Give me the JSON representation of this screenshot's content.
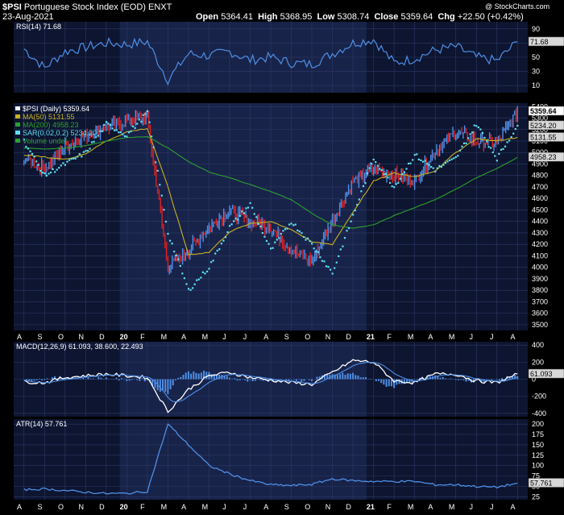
{
  "header": {
    "symbol": "$PSI",
    "name": "Portuguese Stock Index (EOD)",
    "exchange": "ENXT",
    "date": "23-Aug-2021",
    "open_label": "Open",
    "open": "5364.41",
    "high_label": "High",
    "high": "5368.95",
    "low_label": "Low",
    "low": "5308.74",
    "close_label": "Close",
    "close": "5359.64",
    "chg_label": "Chg",
    "chg": "+22.50 (+0.42%)",
    "watermark": "@ StockCharts.com"
  },
  "colors": {
    "panel_bg": "#0d1530",
    "shade_bg": "#18234a",
    "grid": "#2f3a66",
    "line_blue": "#4f8fe6",
    "sar": "#5fe0f0",
    "ma50": "#c9b020",
    "ma200": "#2ea02e",
    "up": "#4f8fe6",
    "down": "#e02020",
    "text": "#ffffff",
    "label_bg": "#d8d8d8"
  },
  "x_axis": {
    "labels": [
      "A",
      "S",
      "O",
      "N",
      "D",
      "20",
      "F",
      "M",
      "A",
      "M",
      "J",
      "J",
      "A",
      "S",
      "O",
      "N",
      "D",
      "21",
      "F",
      "M",
      "A",
      "M",
      "J",
      "J",
      "A"
    ],
    "year_labels": [
      "20",
      "21"
    ]
  },
  "rsi_panel": {
    "legend": "RSI(14) 71.68",
    "last_label": "71.68",
    "last": 71.68,
    "ticks": [
      90,
      70,
      50,
      30,
      10
    ],
    "ylim": [
      0,
      100
    ]
  },
  "price_panel": {
    "legend": [
      {
        "text": "$PSI (Daily) 5359.64",
        "color": "#ffffff"
      },
      {
        "text": "MA(50) 5131.55",
        "color": "#c9b020"
      },
      {
        "text": "MA(200) 4958.23",
        "color": "#2ea02e"
      },
      {
        "text": "SAR(0.02,0.2) 5234.20",
        "color": "#5fe0f0"
      },
      {
        "text": "Volume undef",
        "color": "#2ea02e"
      }
    ],
    "ticks": [
      5400,
      5300,
      5200,
      5100,
      5000,
      4900,
      4800,
      4700,
      4600,
      4500,
      4400,
      4300,
      4200,
      4100,
      4000,
      3900,
      3800,
      3700,
      3600,
      3500
    ],
    "ylim": [
      3450,
      5430
    ],
    "last_labels": [
      {
        "text": "5359.64",
        "value": 5359.64,
        "style": "close"
      },
      {
        "text": "5234.20",
        "value": 5234.2,
        "style": "plain"
      },
      {
        "text": "5131.55",
        "value": 5131.55,
        "style": "plain"
      },
      {
        "text": "4958.23",
        "value": 4958.23,
        "style": "plain"
      }
    ]
  },
  "macd_panel": {
    "legend": "MACD(12,26,9) 61.093, 38.600, 22.493",
    "last_label": "61.093",
    "last": 61.093,
    "ticks": [
      400,
      200,
      0,
      -200,
      -400
    ],
    "ylim": [
      -440,
      440
    ]
  },
  "atr_panel": {
    "legend": "ATR(14) 57.761",
    "last_label": "57.761",
    "last": 57.761,
    "ticks": [
      200,
      175,
      150,
      125,
      100,
      75,
      50,
      25
    ],
    "ylim": [
      18,
      212
    ]
  },
  "chart_data": {
    "type": "line",
    "x": [
      "2019-08",
      "2019-09",
      "2019-10",
      "2019-11",
      "2019-12",
      "2020-01",
      "2020-02",
      "2020-03",
      "2020-04",
      "2020-05",
      "2020-06",
      "2020-07",
      "2020-08",
      "2020-09",
      "2020-10",
      "2020-11",
      "2020-12",
      "2021-01",
      "2021-02",
      "2021-03",
      "2021-04",
      "2021-05",
      "2021-06",
      "2021-07",
      "2021-08"
    ],
    "series": [
      {
        "name": "$PSI (Daily) 5359.64",
        "values": [
          4950,
          4860,
          5050,
          5150,
          5220,
          5280,
          5300,
          4000,
          4150,
          4350,
          4500,
          4400,
          4350,
          4150,
          4050,
          4400,
          4750,
          4850,
          4800,
          4750,
          5020,
          5180,
          5100,
          5080,
          5360
        ]
      },
      {
        "name": "MA(50) 5131.55",
        "values": [
          4980,
          4960,
          4940,
          4990,
          5100,
          5180,
          5210,
          4700,
          4110,
          4130,
          4310,
          4380,
          4400,
          4330,
          4220,
          4200,
          4480,
          4750,
          4820,
          4790,
          4840,
          5000,
          5120,
          5100,
          5131.55
        ]
      },
      {
        "name": "MA(200) 4958.23",
        "values": [
          5040,
          5030,
          5040,
          5060,
          5100,
          5130,
          5140,
          5040,
          4920,
          4830,
          4780,
          4720,
          4660,
          4590,
          4470,
          4370,
          4340,
          4370,
          4450,
          4520,
          4590,
          4680,
          4780,
          4860,
          4958.23
        ]
      },
      {
        "name": "SAR(0.02,0.2) 5234.20",
        "values": [
          5100,
          4800,
          4900,
          5000,
          5250,
          5150,
          5350,
          4300,
          3800,
          4000,
          4350,
          4550,
          4150,
          4400,
          4200,
          3950,
          4450,
          4950,
          4700,
          4980,
          4850,
          4950,
          5250,
          4950,
          5234.2
        ]
      },
      {
        "name": "RSI(14) 71.68",
        "values": [
          62,
          35,
          58,
          64,
          70,
          68,
          72,
          18,
          55,
          52,
          58,
          46,
          50,
          42,
          40,
          55,
          70,
          75,
          42,
          48,
          60,
          65,
          50,
          45,
          71.68
        ]
      },
      {
        "name": "MACD(12,26,9) 61.093, 38.600, 22.493",
        "values": [
          -30,
          -40,
          20,
          40,
          60,
          40,
          20,
          -380,
          -120,
          40,
          80,
          20,
          -10,
          -40,
          -60,
          80,
          220,
          200,
          -20,
          -40,
          60,
          60,
          -20,
          -40,
          61.093
        ]
      },
      {
        "name": "ATR(14) 57.761",
        "values": [
          42,
          44,
          40,
          36,
          33,
          33,
          38,
          200,
          150,
          100,
          80,
          64,
          54,
          52,
          55,
          68,
          64,
          62,
          62,
          62,
          54,
          54,
          50,
          48,
          57.761
        ]
      }
    ]
  }
}
